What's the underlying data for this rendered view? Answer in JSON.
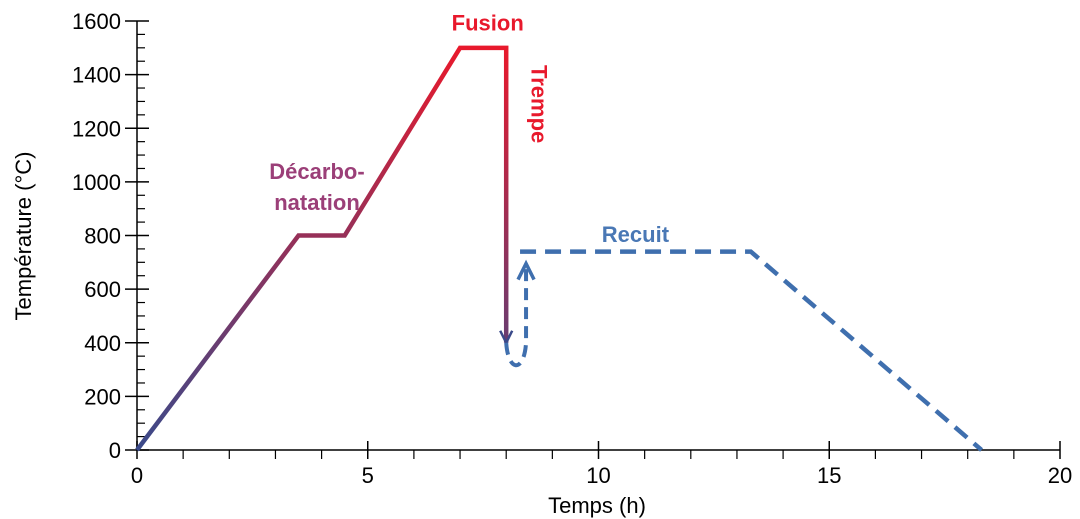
{
  "chart_data": {
    "type": "line",
    "title": "",
    "xlabel": "Temps (h)",
    "ylabel": "Température (°C)",
    "xlim": [
      0,
      20
    ],
    "ylim": [
      0,
      1600
    ],
    "x_ticks": [
      0,
      5,
      10,
      15,
      20
    ],
    "x_tick_labels": [
      "0",
      "5",
      "10",
      "15",
      "20"
    ],
    "y_ticks": [
      0,
      200,
      400,
      600,
      800,
      1000,
      1200,
      1400,
      1600
    ],
    "y_tick_labels": [
      "0",
      "200",
      "400",
      "600",
      "800",
      "1000",
      "1200",
      "1400",
      "1600"
    ],
    "grid": false,
    "legend": "none",
    "series": [
      {
        "style": "solid-gradient",
        "color_start": "#3a4a8a",
        "color_end": "#e8192c",
        "x": [
          0,
          3.5,
          4.5,
          7.0,
          8.0,
          8.0
        ],
        "y": [
          0,
          800,
          800,
          1500,
          1500,
          400
        ]
      },
      {
        "style": "dashed",
        "color": "#3f6fae",
        "x": [
          8.3,
          13.3,
          18.3
        ],
        "y": [
          740,
          740,
          0
        ]
      }
    ],
    "annotations": [
      {
        "text": "Fusion",
        "x": 7.6,
        "y": 1565,
        "color": "#e8192c",
        "rotate": 0
      },
      {
        "text": "Trempe",
        "x": 8.55,
        "y": 1290,
        "color": "#e8192c",
        "rotate": 90
      },
      {
        "text": "Décarbo-",
        "x": 3.9,
        "y": 1010,
        "color": "#9b3f78",
        "rotate": 0
      },
      {
        "text": "natation",
        "x": 3.9,
        "y": 895,
        "color": "#9b3f78",
        "rotate": 0
      },
      {
        "text": "Recuit",
        "x": 10.8,
        "y": 775,
        "color": "#4a78b5",
        "rotate": 0
      }
    ]
  }
}
